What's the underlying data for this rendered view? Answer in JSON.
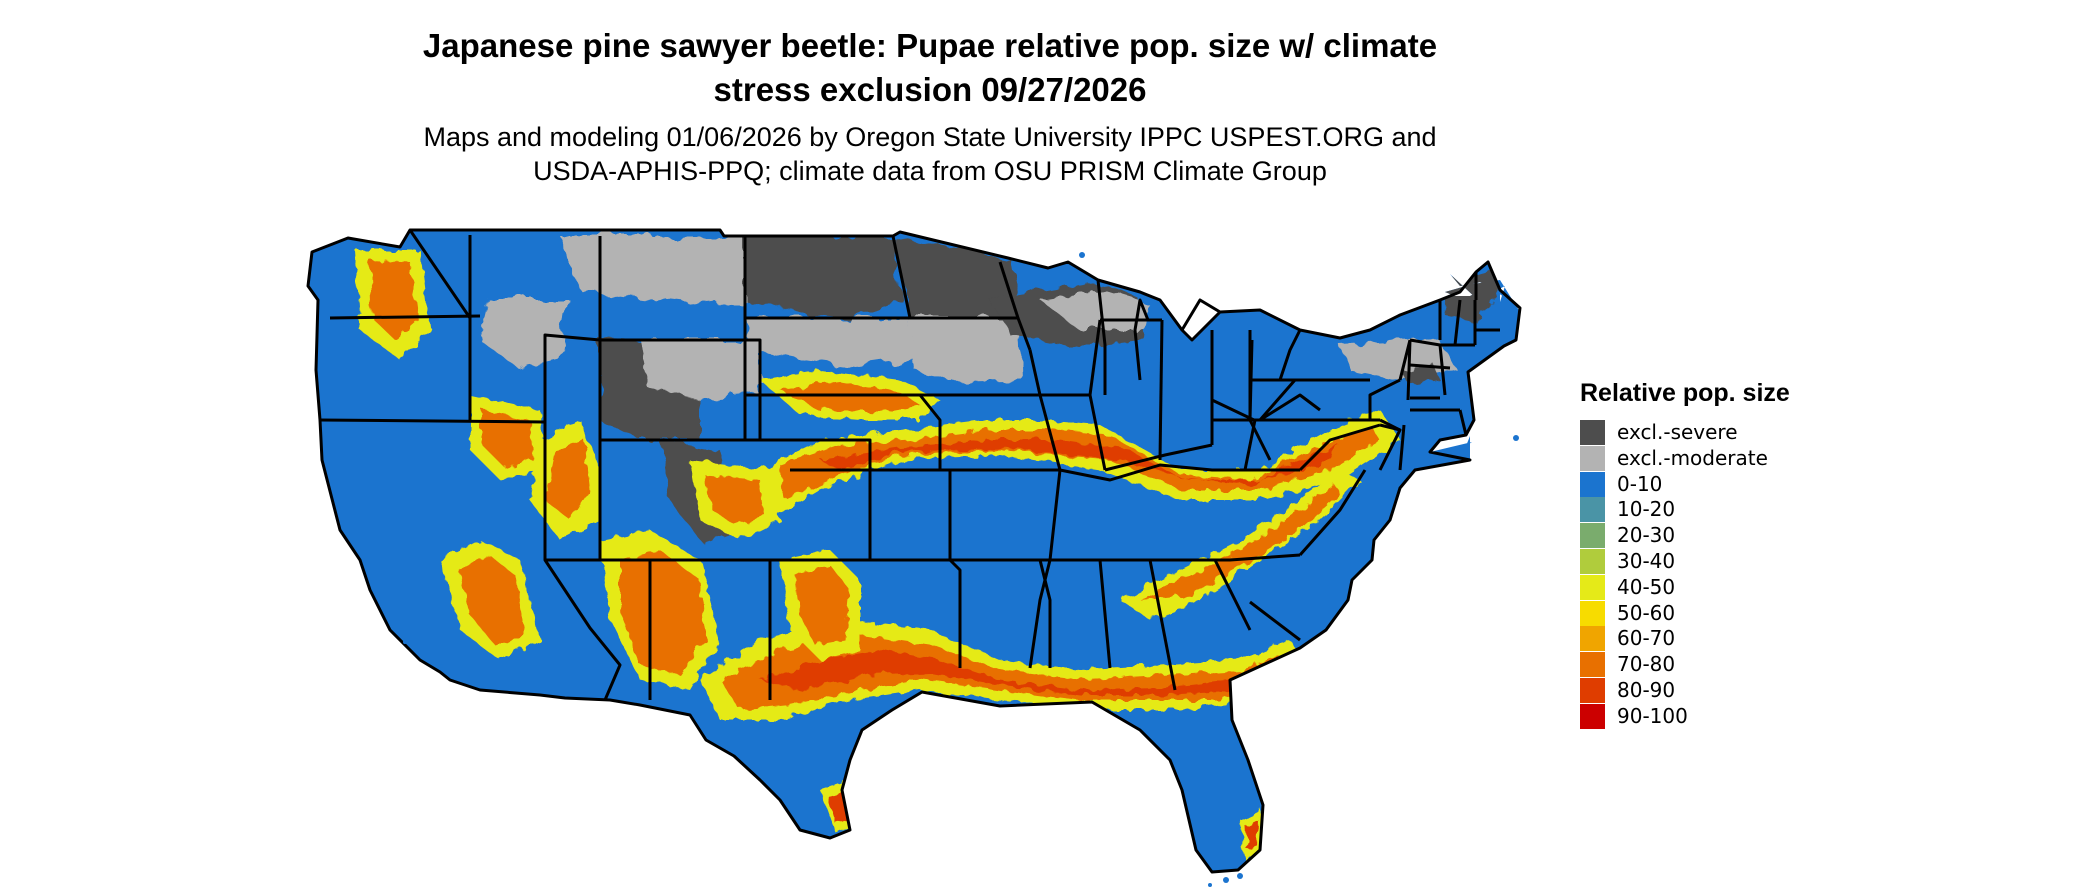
{
  "title_line1": "Japanese pine sawyer beetle: Pupae relative pop. size w/ climate",
  "title_line2": "stress exclusion 09/27/2026",
  "subtitle_line1": "Maps and modeling 01/06/2026 by Oregon State University IPPC USPEST.ORG and",
  "subtitle_line2": "USDA-APHIS-PPQ; climate data from OSU PRISM Climate Group",
  "legend": {
    "title": "Relative pop. size",
    "items": [
      {
        "label": "excl.-severe",
        "color": "#4d4d4d"
      },
      {
        "label": "excl.-moderate",
        "color": "#b3b3b3"
      },
      {
        "label": "0-10",
        "color": "#1b74cf"
      },
      {
        "label": "10-20",
        "color": "#4a94a6"
      },
      {
        "label": "20-30",
        "color": "#7aac6d"
      },
      {
        "label": "30-40",
        "color": "#b0cc3c"
      },
      {
        "label": "40-50",
        "color": "#e5ea18"
      },
      {
        "label": "50-60",
        "color": "#f7dc00"
      },
      {
        "label": "60-70",
        "color": "#f0a500"
      },
      {
        "label": "70-80",
        "color": "#e87000"
      },
      {
        "label": "80-90",
        "color": "#df3d00"
      },
      {
        "label": "90-100",
        "color": "#cc0000"
      }
    ]
  },
  "map_colors": {
    "background": "#ffffff",
    "base": "#1b74cf",
    "state_border": "#000000"
  }
}
